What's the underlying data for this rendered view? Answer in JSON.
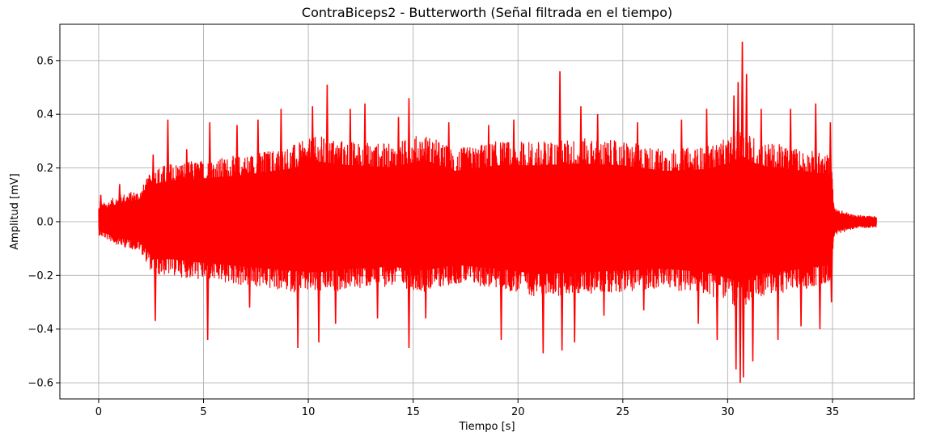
{
  "chart_data": {
    "type": "line",
    "title": "ContraBiceps2 - Butterworth (Señal filtrada en el tiempo)",
    "xlabel": "Tiempo [s]",
    "ylabel": "Amplitud [mV]",
    "xlim": [
      -1.85,
      38.9
    ],
    "ylim": [
      -0.66,
      0.735
    ],
    "x_ticks": [
      0,
      5,
      10,
      15,
      20,
      25,
      30,
      35
    ],
    "x_tick_labels": [
      "0",
      "5",
      "10",
      "15",
      "20",
      "25",
      "30",
      "35"
    ],
    "y_ticks": [
      -0.6,
      -0.4,
      -0.2,
      0.0,
      0.2,
      0.4,
      0.6
    ],
    "y_tick_labels": [
      "−0.6",
      "−0.4",
      "−0.2",
      "0.0",
      "0.2",
      "0.4",
      "0.6"
    ],
    "grid": true,
    "series_color": "#ff0000",
    "series": [
      {
        "x_range": [
          0,
          37.1
        ],
        "envelope": {
          "t": [
            0,
            1,
            2,
            2.6,
            3.5,
            5,
            7,
            9,
            10.5,
            12,
            14,
            15.5,
            17,
            19,
            21,
            23,
            25,
            27,
            29,
            30,
            30.7,
            31.5,
            33,
            34.9,
            35.1,
            36,
            37.1
          ],
          "upper": [
            0.06,
            0.1,
            0.12,
            0.2,
            0.22,
            0.23,
            0.25,
            0.28,
            0.32,
            0.3,
            0.29,
            0.33,
            0.27,
            0.3,
            0.3,
            0.31,
            0.3,
            0.27,
            0.28,
            0.31,
            0.35,
            0.3,
            0.28,
            0.25,
            0.05,
            0.025,
            0.02
          ],
          "lower": [
            -0.05,
            -0.09,
            -0.11,
            -0.2,
            -0.2,
            -0.22,
            -0.24,
            -0.26,
            -0.27,
            -0.25,
            -0.24,
            -0.26,
            -0.23,
            -0.25,
            -0.28,
            -0.27,
            -0.26,
            -0.25,
            -0.27,
            -0.3,
            -0.33,
            -0.28,
            -0.26,
            -0.23,
            -0.05,
            -0.025,
            -0.02
          ]
        },
        "peaks": [
          {
            "x": 0.1,
            "y": 0.1
          },
          {
            "x": 1.0,
            "y": 0.14
          },
          {
            "x": 2.6,
            "y": 0.25
          },
          {
            "x": 2.7,
            "y": -0.37
          },
          {
            "x": 3.3,
            "y": 0.38
          },
          {
            "x": 4.2,
            "y": 0.27
          },
          {
            "x": 5.2,
            "y": -0.44
          },
          {
            "x": 5.3,
            "y": 0.37
          },
          {
            "x": 6.6,
            "y": 0.36
          },
          {
            "x": 7.2,
            "y": -0.32
          },
          {
            "x": 7.6,
            "y": 0.38
          },
          {
            "x": 8.7,
            "y": 0.42
          },
          {
            "x": 9.5,
            "y": -0.47
          },
          {
            "x": 10.2,
            "y": 0.43
          },
          {
            "x": 10.5,
            "y": -0.45
          },
          {
            "x": 10.9,
            "y": 0.51
          },
          {
            "x": 11.3,
            "y": -0.38
          },
          {
            "x": 12.0,
            "y": 0.42
          },
          {
            "x": 12.7,
            "y": 0.44
          },
          {
            "x": 13.3,
            "y": -0.36
          },
          {
            "x": 14.3,
            "y": 0.39
          },
          {
            "x": 14.8,
            "y": 0.46
          },
          {
            "x": 14.8,
            "y": -0.47
          },
          {
            "x": 15.6,
            "y": -0.36
          },
          {
            "x": 16.7,
            "y": 0.37
          },
          {
            "x": 18.6,
            "y": 0.36
          },
          {
            "x": 19.2,
            "y": -0.44
          },
          {
            "x": 19.8,
            "y": 0.38
          },
          {
            "x": 21.2,
            "y": -0.49
          },
          {
            "x": 22.0,
            "y": 0.56
          },
          {
            "x": 22.1,
            "y": -0.48
          },
          {
            "x": 22.7,
            "y": -0.45
          },
          {
            "x": 23.0,
            "y": 0.43
          },
          {
            "x": 23.8,
            "y": 0.4
          },
          {
            "x": 24.1,
            "y": -0.35
          },
          {
            "x": 25.7,
            "y": 0.37
          },
          {
            "x": 26.0,
            "y": -0.33
          },
          {
            "x": 27.8,
            "y": 0.38
          },
          {
            "x": 28.6,
            "y": -0.38
          },
          {
            "x": 29.0,
            "y": 0.42
          },
          {
            "x": 29.5,
            "y": -0.44
          },
          {
            "x": 30.3,
            "y": 0.47
          },
          {
            "x": 30.4,
            "y": -0.55
          },
          {
            "x": 30.5,
            "y": 0.52
          },
          {
            "x": 30.6,
            "y": -0.6
          },
          {
            "x": 30.7,
            "y": 0.67
          },
          {
            "x": 30.75,
            "y": -0.58
          },
          {
            "x": 30.9,
            "y": 0.55
          },
          {
            "x": 31.2,
            "y": -0.52
          },
          {
            "x": 31.6,
            "y": 0.42
          },
          {
            "x": 32.4,
            "y": -0.44
          },
          {
            "x": 33.0,
            "y": 0.42
          },
          {
            "x": 33.5,
            "y": -0.39
          },
          {
            "x": 34.2,
            "y": 0.44
          },
          {
            "x": 34.4,
            "y": -0.4
          },
          {
            "x": 34.9,
            "y": 0.37
          },
          {
            "x": 34.95,
            "y": -0.3
          }
        ]
      }
    ]
  }
}
